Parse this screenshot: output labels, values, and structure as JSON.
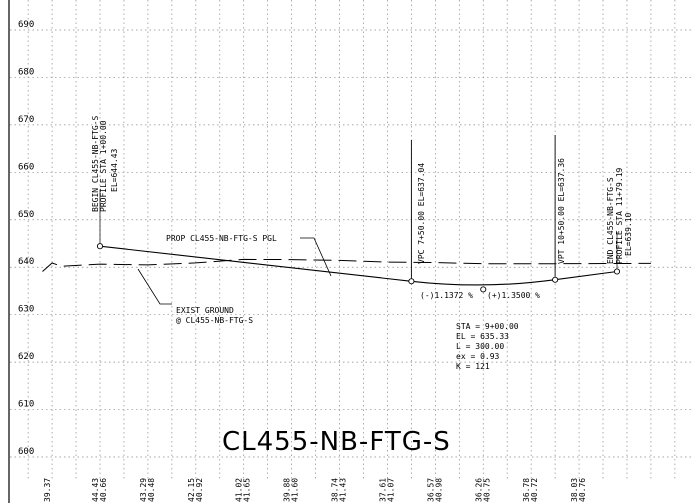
{
  "title": "CL455-NB-FTG-S",
  "elevation_labels": [
    "690",
    "680",
    "670",
    "660",
    "650",
    "640",
    "630",
    "620",
    "610",
    "600"
  ],
  "station_elevations": [
    [
      "39.37",
      ""
    ],
    [
      "44.43",
      "40.66"
    ],
    [
      "43.29",
      "40.48"
    ],
    [
      "42.15",
      "40.92"
    ],
    [
      "41.02",
      "41.65"
    ],
    [
      "39.88",
      "41.60"
    ],
    [
      "38.74",
      "41.43"
    ],
    [
      "37.61",
      "41.07"
    ],
    [
      "36.57",
      "40.98"
    ],
    [
      "36.26",
      "40.75"
    ],
    [
      "36.78",
      "40.72"
    ],
    [
      "38.03",
      "40.76"
    ]
  ],
  "annotations": {
    "begin": [
      "BEGIN CL455-NB-FTG-S",
      "PROFILE STA 1+00.00",
      "EL=644.43"
    ],
    "vpc": "VPC 7+50.00 EL=637.04",
    "vpt": "VPT 10+50.00 EL=637.36",
    "end": [
      "END CL455-NB-FTG-S",
      "PROFILE STA 11+79.19",
      "EL=639.10"
    ],
    "pgl_label": "PROP CL455-NB-FTG-S PGL",
    "exist_ground": [
      "EXIST GROUND",
      "@ CL455-NB-FTG-S"
    ],
    "grade_in": "(-)1.1372 %",
    "grade_out": "(+)1.3500 %",
    "curve_info": [
      "STA = 9+00.00",
      "EL = 635.33",
      "L = 300.00",
      "ex = 0.93",
      "K = 121"
    ]
  },
  "chart_data": {
    "type": "line",
    "title": "CL455-NB-FTG-S",
    "xlabel": "",
    "ylabel": "",
    "ylim": [
      595,
      694
    ],
    "yticks": [
      600,
      610,
      620,
      630,
      640,
      650,
      660,
      670,
      680,
      690
    ],
    "xlim": [
      -20,
      1250
    ],
    "series": [
      {
        "name": "PROP CL455-NB-FTG-S PGL",
        "points": [
          [
            100,
            644.43
          ],
          [
            750,
            637.04
          ],
          [
            900,
            635.33
          ],
          [
            1050,
            637.36
          ],
          [
            1179.19,
            639.1
          ]
        ]
      },
      {
        "name": "EXIST GROUND @ CL455-NB-FTG-S",
        "points": [
          [
            -20,
            639.1
          ],
          [
            0,
            640.9
          ],
          [
            20,
            640.2
          ],
          [
            100,
            640.66
          ],
          [
            200,
            640.48
          ],
          [
            300,
            640.92
          ],
          [
            400,
            641.65
          ],
          [
            500,
            641.6
          ],
          [
            600,
            641.43
          ],
          [
            700,
            641.07
          ],
          [
            800,
            640.98
          ],
          [
            900,
            640.75
          ],
          [
            1000,
            640.72
          ],
          [
            1100,
            640.76
          ],
          [
            1250,
            640.8
          ]
        ]
      }
    ],
    "vertical_curve": {
      "pvi_sta": 900,
      "pvi_el": 635.33,
      "length": 300,
      "e": 0.93,
      "k": 121
    },
    "grid": true
  }
}
